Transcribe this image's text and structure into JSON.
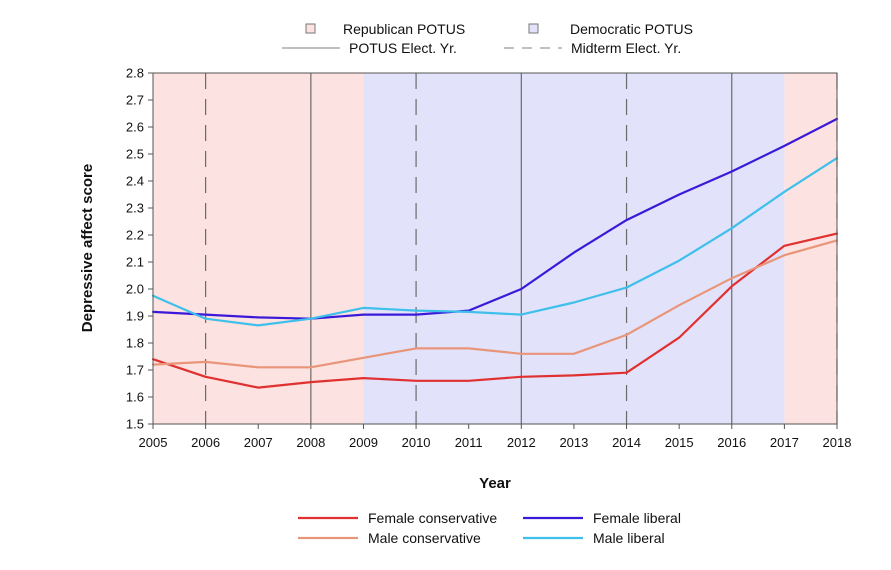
{
  "chart_data": {
    "type": "line",
    "xlabel": "Year",
    "ylabel": "Depressive affect score",
    "x": [
      2005,
      2006,
      2007,
      2008,
      2009,
      2010,
      2011,
      2012,
      2013,
      2014,
      2015,
      2016,
      2017,
      2018
    ],
    "xlim": [
      2005,
      2018
    ],
    "ylim": [
      1.5,
      2.8
    ],
    "yticks": [
      "1.5",
      "1.6",
      "1.7",
      "1.8",
      "1.9",
      "2.0",
      "2.1",
      "2.2",
      "2.3",
      "2.4",
      "2.5",
      "2.6",
      "2.7",
      "2.8"
    ],
    "grid": false,
    "series": [
      {
        "name": "Female conservative",
        "color": "#e03030",
        "values": [
          1.74,
          1.675,
          1.635,
          1.655,
          1.67,
          1.66,
          1.66,
          1.675,
          1.68,
          1.69,
          1.82,
          2.01,
          2.16,
          2.205
        ]
      },
      {
        "name": "Male conservative",
        "color": "#e8957a",
        "values": [
          1.72,
          1.73,
          1.71,
          1.71,
          1.745,
          1.78,
          1.78,
          1.76,
          1.76,
          1.83,
          1.94,
          2.04,
          2.125,
          2.18
        ]
      },
      {
        "name": "Female liberal",
        "color": "#3a1ad8",
        "values": [
          1.915,
          1.905,
          1.895,
          1.89,
          1.905,
          1.905,
          1.92,
          2.0,
          2.135,
          2.255,
          2.35,
          2.435,
          2.53,
          2.63
        ]
      },
      {
        "name": "Male liberal",
        "color": "#3ec0ea",
        "values": [
          1.975,
          1.89,
          1.865,
          1.89,
          1.93,
          1.92,
          1.915,
          1.905,
          1.95,
          2.005,
          2.105,
          2.225,
          2.36,
          2.485
        ]
      }
    ],
    "periods": [
      {
        "party": "Republican",
        "start": 2005,
        "end": 2009,
        "color": "#fce2e0"
      },
      {
        "party": "Democratic",
        "start": 2009,
        "end": 2017,
        "color": "#e3e2fb"
      },
      {
        "party": "Republican",
        "start": 2017,
        "end": 2018,
        "color": "#fce2e0"
      }
    ],
    "potus_election_years": [
      2008,
      2012,
      2016
    ],
    "midterm_election_years": [
      2006,
      2010,
      2014,
      2018
    ],
    "legend_top": {
      "republican": "Republican POTUS",
      "democratic": "Democratic POTUS",
      "potus_elect": "POTUS Elect. Yr.",
      "midterm_elect": "Midterm Elect. Yr."
    },
    "legend_placement": "bottom"
  }
}
